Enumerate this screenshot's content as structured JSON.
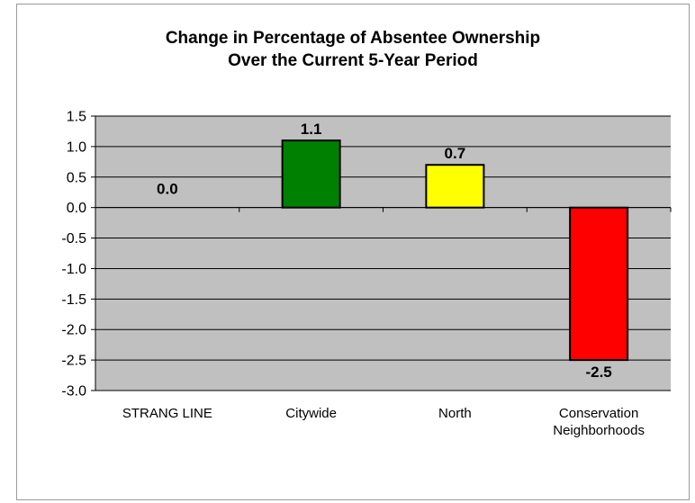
{
  "chart_data": {
    "type": "bar",
    "title_lines": [
      "Change in Percentage of Absentee Ownership",
      "Over the Current 5-Year Period"
    ],
    "xlabel": "",
    "ylabel": "",
    "categories": [
      [
        "STRANG LINE"
      ],
      [
        "Citywide"
      ],
      [
        "North"
      ],
      [
        "Conservation",
        "Neighborhoods"
      ]
    ],
    "values": [
      0.0,
      1.1,
      0.7,
      -2.5
    ],
    "value_labels": [
      "0.0",
      "1.1",
      "0.7",
      "-2.5"
    ],
    "colors": [
      "#ffffff",
      "#008000",
      "#ffff00",
      "#ff0000"
    ],
    "ylim": [
      -3.0,
      1.5
    ],
    "yticks": [
      1.5,
      1.0,
      0.5,
      0.0,
      -0.5,
      -1.0,
      -1.5,
      -2.0,
      -2.5,
      -3.0
    ],
    "ytick_labels": [
      "1.5",
      "1.0",
      "0.5",
      "0.0",
      "-0.5",
      "-1.0",
      "-1.5",
      "-2.0",
      "-2.5",
      "-3.0"
    ],
    "plot_background": "#c0c0c0",
    "grid": true,
    "legend": "none"
  }
}
